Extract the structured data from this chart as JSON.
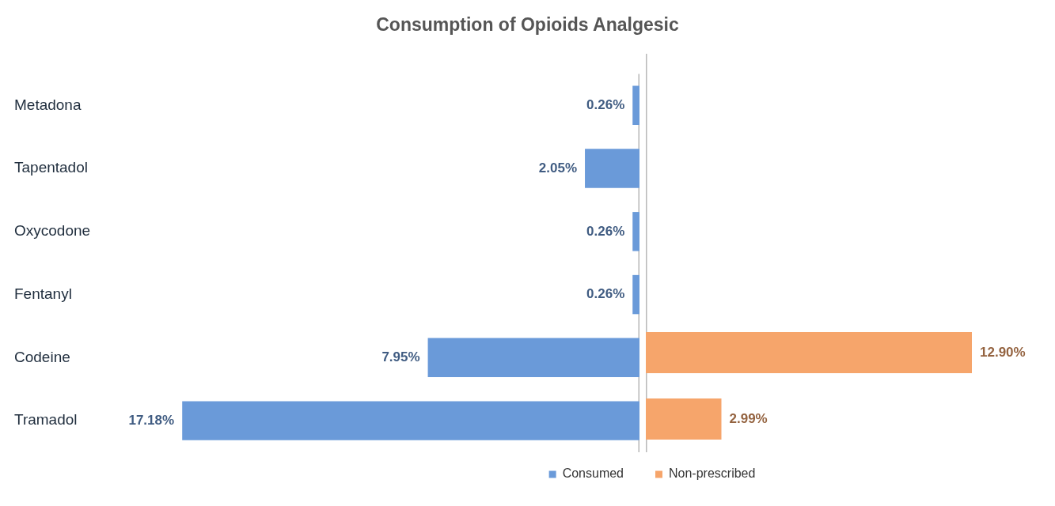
{
  "chart_data": [
    {
      "type": "bar",
      "orientation": "horizontal",
      "title": "Consumption of Opioids Analgesic",
      "categories": [
        "Metadona",
        "Tapentadol",
        "Oxycodone",
        "Fentanyl",
        "Codeine",
        "Tramadol"
      ],
      "series": [
        {
          "name": "Consumed",
          "color": "#6a9ad9",
          "values": [
            0.26,
            2.05,
            0.26,
            0.26,
            7.95,
            17.18
          ],
          "value_labels": [
            "0.26%",
            "2.05%",
            "0.26%",
            "0.26%",
            "7.95%",
            "17.18%"
          ]
        }
      ],
      "xlim": [
        17.18,
        0
      ],
      "tick_labels": "y",
      "legend": "bottom"
    },
    {
      "type": "bar",
      "orientation": "horizontal",
      "categories": [
        null,
        null,
        null,
        null,
        null,
        null
      ],
      "series": [
        {
          "name": "Non-prescribed",
          "color": "#f6a56b",
          "values": [
            null,
            null,
            null,
            null,
            12.9,
            2.99
          ],
          "value_labels": [
            null,
            null,
            null,
            null,
            "12.90%",
            "2.99%"
          ]
        }
      ],
      "xlim": [
        0,
        12.9
      ],
      "tick_labels": false,
      "legend": "bottom"
    }
  ]
}
